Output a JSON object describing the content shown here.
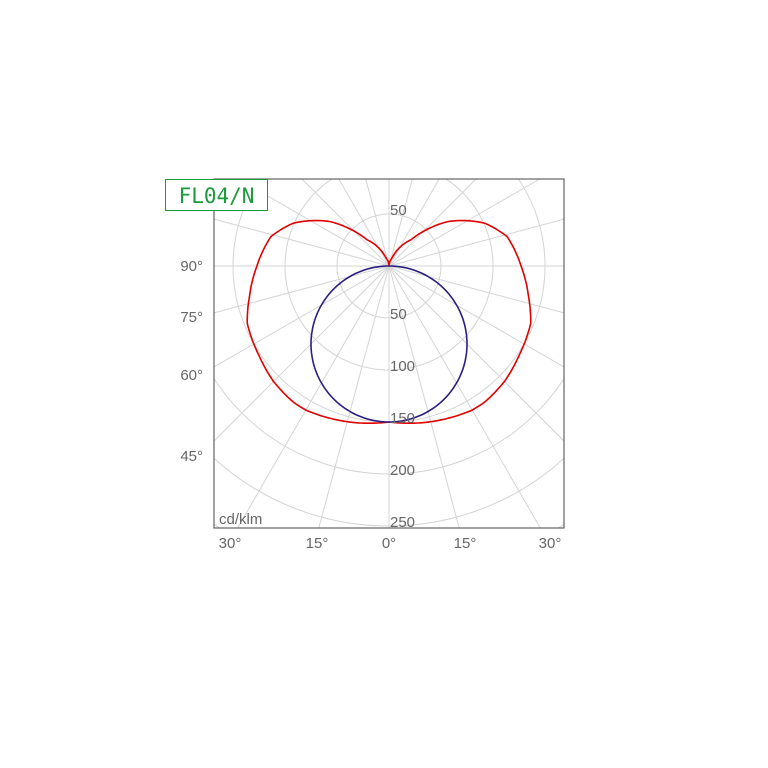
{
  "chart_data": {
    "type": "polar",
    "title": "FL04/N",
    "unit_label": "cd/klm",
    "radial_ticks": [
      50,
      100,
      150,
      200,
      250
    ],
    "radial_max": 250,
    "angle_step_deg": 15,
    "left_angle_labels": [
      "90°",
      "75°",
      "60°",
      "45°"
    ],
    "bottom_angle_labels": [
      "30°",
      "15°",
      "0°",
      "15°",
      "30°"
    ],
    "grid": true,
    "series": [
      {
        "color": "#e00000",
        "angles_deg": [
          0,
          15,
          30,
          35,
          45,
          55,
          68,
          78,
          90,
          104,
          114,
          127,
          140,
          160,
          180
        ],
        "values": [
          150,
          155,
          160,
          160,
          157,
          152,
          147,
          137,
          127,
          117,
          101,
          71,
          33,
          8,
          0
        ]
      },
      {
        "color": "#2a1f80",
        "angles_deg": [
          0,
          15,
          30,
          45,
          60,
          75,
          90
        ],
        "values": [
          150,
          144.9,
          129.9,
          106.1,
          75,
          38.8,
          0
        ]
      }
    ]
  }
}
